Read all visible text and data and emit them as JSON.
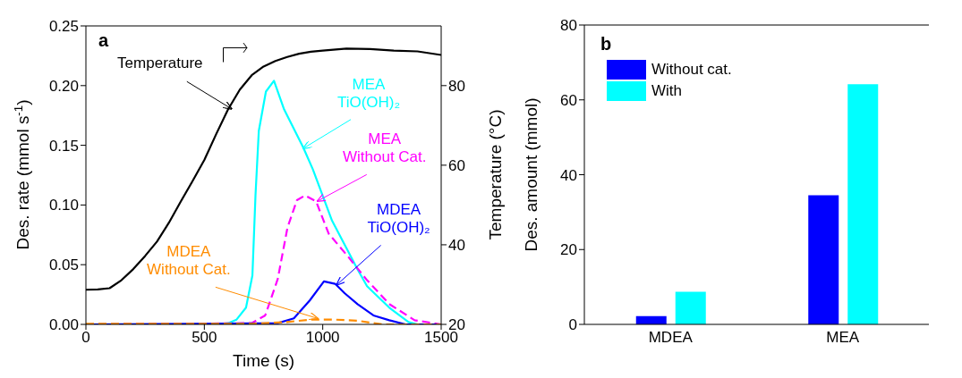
{
  "chart_data": [
    {
      "type": "line",
      "xlabel": "Time (s)",
      "ylabel": "Des. rate (mmol s$^{-1}$)",
      "y2label": "Temperature (°C)",
      "xlim": [
        0,
        1500
      ],
      "xticks": [
        0,
        500,
        1000,
        1500
      ],
      "ylim": [
        0,
        0.25
      ],
      "yticks": [
        {
          "value": 0,
          "label": "0.00"
        },
        0.05,
        {
          "value": 0.1,
          "label": "0.10"
        },
        0.15,
        {
          "value": 0.2,
          "label": "0.20"
        },
        0.25
      ],
      "y2lim": [
        20,
        95
      ],
      "y2ticks": [
        20,
        40,
        60,
        80
      ],
      "series": [
        {
          "color": "#000000",
          "axis": "y2",
          "x": [
            0,
            50,
            100,
            150,
            200,
            250,
            300,
            350,
            400,
            450,
            500,
            550,
            600,
            650,
            700,
            750,
            800,
            850,
            900,
            950,
            1000,
            1100,
            1200,
            1300,
            1400,
            1500
          ],
          "values": [
            28.7,
            28.8,
            29.1,
            31.1,
            33.9,
            37.2,
            40.8,
            45.5,
            50.8,
            56.0,
            61.3,
            67.8,
            74.0,
            79.0,
            82.6,
            84.8,
            86.2,
            87.2,
            88.0,
            88.5,
            88.8,
            89.3,
            89.2,
            88.8,
            88.6,
            87.7
          ]
        },
        {
          "color": "#00ffff",
          "x": [
            0,
            550,
            600,
            636,
            676,
            703,
            716,
            730,
            760,
            794,
            837,
            918,
            958,
            1039,
            1147,
            1187,
            1281,
            1362,
            1400,
            1500
          ],
          "values": [
            0,
            0,
            0.001,
            0.004,
            0.014,
            0.041,
            0.108,
            0.162,
            0.195,
            0.204,
            0.18,
            0.148,
            0.13,
            0.087,
            0.046,
            0.032,
            0.014,
            0.002,
            0,
            0
          ]
        },
        {
          "color": "#ff00ff",
          "line_style": "dashed",
          "x": [
            0,
            700,
            757,
            810,
            851,
            891,
            925,
            972,
            1025,
            1106,
            1187,
            1281,
            1388,
            1500
          ],
          "values": [
            0,
            0.001,
            0.0075,
            0.038,
            0.081,
            0.104,
            0.108,
            0.103,
            0.076,
            0.057,
            0.037,
            0.017,
            0.0035,
            0
          ]
        },
        {
          "color": "#0000ff",
          "x": [
            0,
            810,
            878,
            945,
            1005,
            1052,
            1093,
            1147,
            1214,
            1281,
            1350,
            1500
          ],
          "values": [
            0,
            0.001,
            0.005,
            0.02,
            0.036,
            0.034,
            0.026,
            0.017,
            0.0075,
            0.0035,
            0,
            0
          ]
        },
        {
          "color": "#ff8c00",
          "line_style": "dashed",
          "x": [
            0,
            700,
            850,
            950,
            1050,
            1150,
            1250,
            1500
          ],
          "values": [
            0.0005,
            0.0005,
            0.002,
            0.004,
            0.004,
            0.003,
            0,
            0
          ]
        }
      ],
      "annotations": [
        "a",
        {
          "text": "Temperature",
          "x": 615,
          "y": 0.18
        },
        {
          "text": "MEA\nTiO(OH)₂",
          "x": 918,
          "y": 0.147
        },
        {
          "text": "MEA\nWithout Cat.",
          "x": 978,
          "y": 0.103
        },
        {
          "text": "MDEA\nTiO(OH)₂",
          "x": 1059,
          "y": 0.033
        },
        {
          "text": "MDEA\nWithout Cat.",
          "x": 978,
          "y": 0.005
        }
      ]
    },
    {
      "type": "bar",
      "ylabel": "Des. amount (mmol)",
      "categories": [
        "MDEA",
        "MEA"
      ],
      "ylim": [
        0,
        80
      ],
      "yticks": [
        0,
        20,
        40,
        60,
        80
      ],
      "legend": "top left",
      "series": [
        {
          "name": "Without cat.",
          "color": "#0000ff",
          "values": [
            2.2,
            34.5
          ]
        },
        {
          "name": "With",
          "color": "#00ffff",
          "values": [
            8.7,
            64.2
          ]
        }
      ],
      "annotations": [
        "b"
      ]
    }
  ]
}
